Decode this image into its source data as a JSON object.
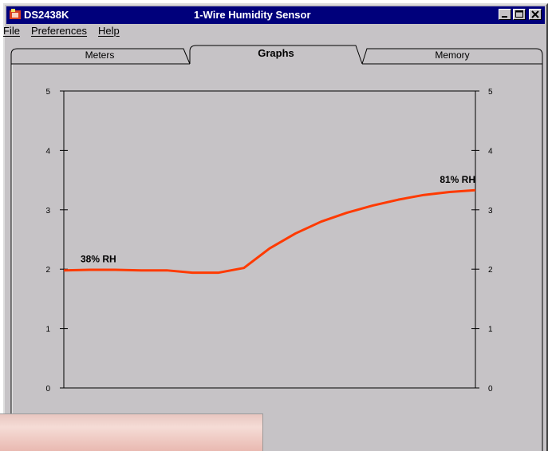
{
  "window": {
    "app_name": "DS2438K",
    "title": "1-Wire Humidity Sensor",
    "controls": [
      "minimize-icon",
      "maximize-icon",
      "close-icon"
    ]
  },
  "menu": {
    "file": "File",
    "preferences": "Preferences",
    "help": "Help"
  },
  "tabs": {
    "meters": "Meters",
    "graphs": "Graphs",
    "memory": "Memory",
    "active": "Graphs"
  },
  "colors": {
    "title_bar": "#00007b",
    "window_face": "#c6c3c6",
    "series_line": "#ff3a00"
  },
  "chart_data": {
    "type": "line",
    "title": "",
    "xlabel": "",
    "ylabel": "",
    "ylim": [
      0,
      5
    ],
    "y_ticks": [
      "0",
      "1",
      "2",
      "3",
      "4",
      "5"
    ],
    "grid": false,
    "series": [
      {
        "values": [
          1.98,
          1.99,
          1.99,
          1.98,
          1.98,
          1.94,
          1.94,
          2.02,
          2.35,
          2.6,
          2.8,
          2.95,
          3.07,
          3.17,
          3.25,
          3.3,
          3.33
        ]
      }
    ],
    "annotations": {
      "start": "38% RH",
      "end": "81% RH"
    }
  }
}
